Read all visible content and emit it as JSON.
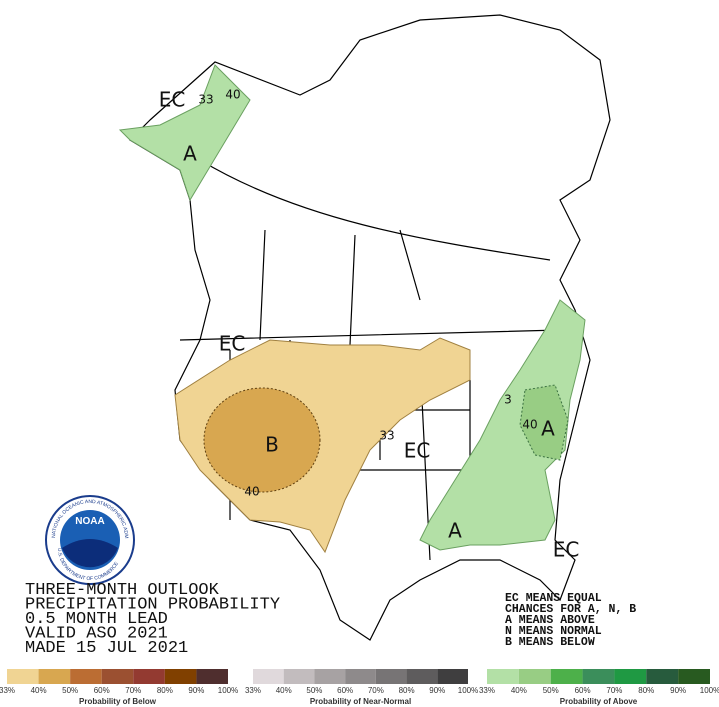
{
  "map_labels": [
    "EC",
    "33",
    "40",
    "A",
    "EC",
    "B",
    "40",
    "33",
    "EC",
    "3",
    "40",
    "A",
    "A",
    "EC"
  ],
  "logo": {
    "name": "NOAA",
    "ring_top": "NATIONAL OCEANIC AND ATMOSPHERIC ADMINISTRATION",
    "ring_bottom": "U.S. DEPARTMENT OF COMMERCE"
  },
  "title_lines": [
    "THREE-MONTH OUTLOOK",
    "PRECIPITATION PROBABILITY",
    "0.5 MONTH LEAD",
    "VALID ASO 2021",
    "MADE 15 JUL 2021"
  ],
  "key_lines": [
    "EC MEANS EQUAL",
    "CHANCES FOR A, N, B",
    "A MEANS ABOVE",
    "N MEANS NORMAL",
    "B MEANS BELOW"
  ],
  "legend": [
    {
      "title": "Probability of Below",
      "colors": [
        "#f0d493",
        "#d8a750",
        "#bb6d33",
        "#9b5031",
        "#933a31",
        "#804000",
        "#4f2e2e"
      ],
      "labels": [
        "33%",
        "40%",
        "50%",
        "60%",
        "70%",
        "80%",
        "90%",
        "100%"
      ]
    },
    {
      "title": "Probability of Near-Normal",
      "colors": [
        "#e0d9dc",
        "#c2bcbe",
        "#a7a2a3",
        "#8e8a8b",
        "#777475",
        "#5e5c5d",
        "#3f3e3f"
      ],
      "labels": [
        "33%",
        "40%",
        "50%",
        "60%",
        "70%",
        "80%",
        "90%",
        "100%"
      ]
    },
    {
      "title": "Probability of Above",
      "colors": [
        "#b3e0a6",
        "#98cd84",
        "#4db04a",
        "#3b8e5b",
        "#1f9943",
        "#275b3d",
        "#285a20"
      ],
      "labels": [
        "33%",
        "40%",
        "50%",
        "60%",
        "70%",
        "80%",
        "90%",
        "100%"
      ]
    }
  ]
}
